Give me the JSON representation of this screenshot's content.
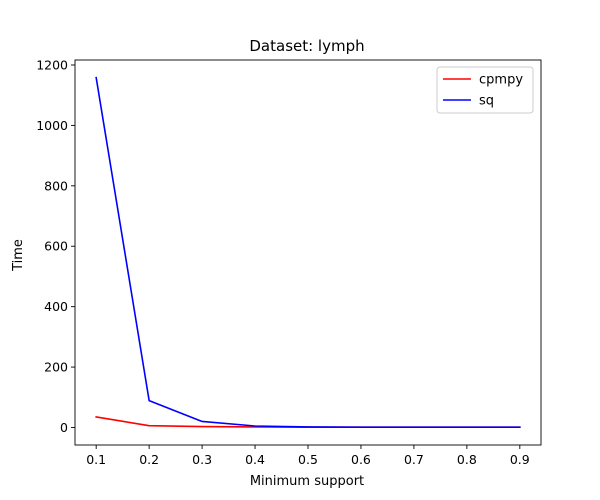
{
  "chart_data": {
    "type": "line",
    "title": "Dataset: lymph",
    "xlabel": "Minimum support",
    "ylabel": "Time",
    "x": [
      0.1,
      0.2,
      0.3,
      0.4,
      0.5,
      0.6,
      0.7,
      0.8,
      0.9
    ],
    "xlim": [
      0.06,
      0.94
    ],
    "ylim": [
      -57.9,
      1216.5
    ],
    "xticks": [
      0.1,
      0.2,
      0.3,
      0.4,
      0.5,
      0.6,
      0.7,
      0.8,
      0.9
    ],
    "xtick_labels": [
      "0.1",
      "0.2",
      "0.3",
      "0.4",
      "0.5",
      "0.6",
      "0.7",
      "0.8",
      "0.9"
    ],
    "yticks": [
      0,
      200,
      400,
      600,
      800,
      1000,
      1200
    ],
    "ytick_labels": [
      "0",
      "200",
      "400",
      "600",
      "800",
      "1000",
      "1200"
    ],
    "grid": false,
    "legend_position": "top-right",
    "series": [
      {
        "name": "cpmpy",
        "color": "#ff0000",
        "values": [
          35,
          6,
          3,
          2,
          1,
          1,
          1,
          1,
          1
        ]
      },
      {
        "name": "sq",
        "color": "#0000ff",
        "values": [
          1158,
          89,
          20,
          5,
          2,
          1,
          1,
          1,
          1
        ]
      }
    ]
  }
}
